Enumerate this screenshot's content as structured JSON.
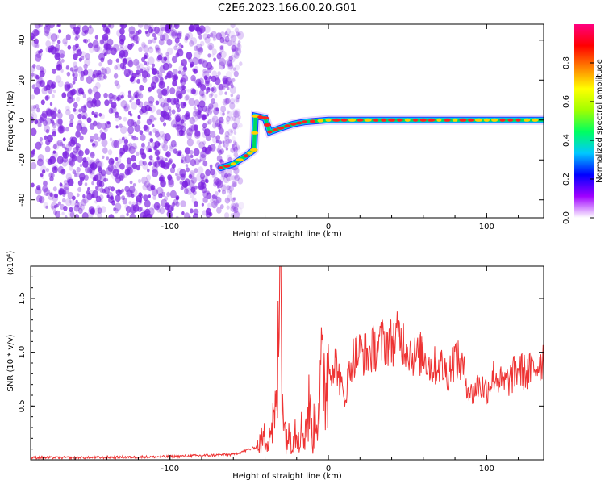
{
  "title": "C2E6.2023.166.00.20.G01",
  "colors": {
    "snr_line": "#ee3333",
    "spectrogram_noise": "#7a1fe0",
    "ridge_high": "#ff2020",
    "ridge_mid": "#00d860",
    "ridge_low": "#1a3cff"
  },
  "chart_data": [
    {
      "type": "heatmap",
      "title": "C2E6.2023.166.00.20.G01",
      "xlabel": "Height of straight line (km)",
      "ylabel": "Frequency (Hz)",
      "xlim": [
        -188,
        136
      ],
      "ylim": [
        -49,
        48
      ],
      "xticks": [
        -100,
        0,
        100
      ],
      "yticks": [
        -40,
        -20,
        0,
        20,
        40
      ],
      "grid": false,
      "colorbar": {
        "label": "Normalized spectral amplitude",
        "range": [
          0,
          1
        ],
        "ticks": [
          "0.0",
          "0.2",
          "0.4",
          "0.6",
          "0.8"
        ],
        "colormap": [
          "#ffffff",
          "#a000ff",
          "#0000ff",
          "#00c8ff",
          "#00ff60",
          "#a0ff00",
          "#ffff00",
          "#ff8000",
          "#ff0000",
          "#ff0080"
        ]
      },
      "ridge": [
        {
          "x": -68,
          "y": -24
        },
        {
          "x": -60,
          "y": -22
        },
        {
          "x": -52,
          "y": -18
        },
        {
          "x": -47,
          "y": -15
        },
        {
          "x": -46,
          "y": 2
        },
        {
          "x": -40,
          "y": 1
        },
        {
          "x": -37,
          "y": -6
        },
        {
          "x": -30,
          "y": -4
        },
        {
          "x": -22,
          "y": -2
        },
        {
          "x": -15,
          "y": -1
        },
        {
          "x": 0,
          "y": 0
        },
        {
          "x": 20,
          "y": 0
        },
        {
          "x": 40,
          "y": 0
        },
        {
          "x": 60,
          "y": 0
        },
        {
          "x": 80,
          "y": 0
        },
        {
          "x": 100,
          "y": 0
        },
        {
          "x": 120,
          "y": 0
        },
        {
          "x": 136,
          "y": 0
        }
      ],
      "noise_region_x": [
        -188,
        -55
      ]
    },
    {
      "type": "line",
      "xlabel": "Height of straight line (km)",
      "ylabel": "SNR (10 * v/v)",
      "y_multiplier_label": "(x10⁴)",
      "xlim": [
        -188,
        136
      ],
      "ylim": [
        0,
        1.8
      ],
      "xticks": [
        -100,
        0,
        100
      ],
      "yticks": [
        0.5,
        1.0,
        1.5
      ],
      "grid": false,
      "series": [
        {
          "color": "#ee3333",
          "x": [
            -188,
            -150,
            -100,
            -60,
            -45,
            -38,
            -33,
            -30,
            -28,
            -25,
            -20,
            -15,
            -12,
            -10,
            -5,
            0,
            5,
            10,
            15,
            20,
            25,
            30,
            35,
            40,
            45,
            50,
            55,
            60,
            65,
            70,
            75,
            80,
            85,
            90,
            95,
            100,
            105,
            110,
            115,
            120,
            125,
            130,
            136
          ],
          "values": [
            0.02,
            0.02,
            0.03,
            0.05,
            0.12,
            0.25,
            0.4,
            1.6,
            0.3,
            0.2,
            0.3,
            0.25,
            0.5,
            0.2,
            0.7,
            0.85,
            0.9,
            0.55,
            0.95,
            1.0,
            0.98,
            1.05,
            1.1,
            1.1,
            1.15,
            1.05,
            0.95,
            1.0,
            0.85,
            0.9,
            0.8,
            0.95,
            0.85,
            0.6,
            0.7,
            0.65,
            0.8,
            0.7,
            0.75,
            0.85,
            0.8,
            0.85,
            0.95
          ]
        }
      ]
    }
  ]
}
